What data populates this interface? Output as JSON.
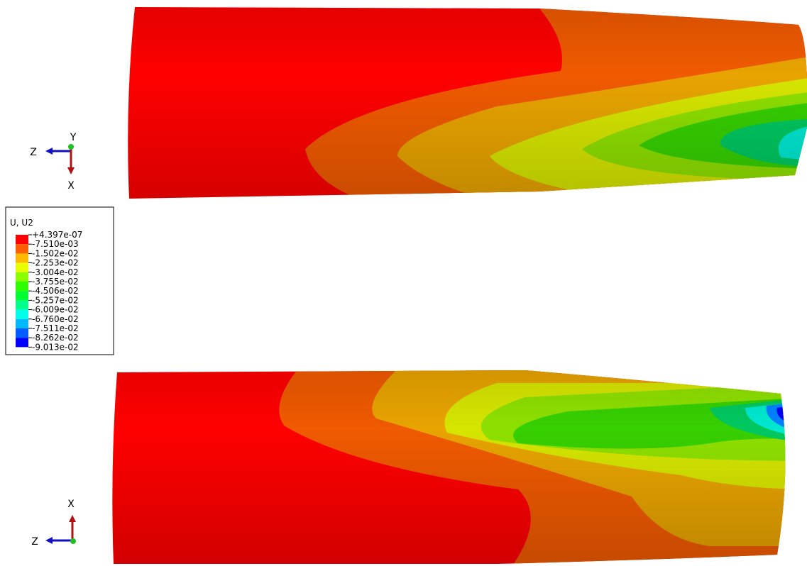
{
  "legend": {
    "title": "U, U2",
    "labels": [
      "+4.397e-07",
      "-7.510e-03",
      "-1.502e-02",
      "-2.253e-02",
      "-3.004e-02",
      "-3.755e-02",
      "-4.506e-02",
      "-5.257e-02",
      "-6.009e-02",
      "-6.760e-02",
      "-7.511e-02",
      "-8.262e-02",
      "-9.013e-02"
    ],
    "colors": [
      "#ff0000",
      "#ff5d00",
      "#ffb900",
      "#e8ff00",
      "#8bff00",
      "#2eff00",
      "#00ff2e",
      "#00ff8b",
      "#00ffe8",
      "#00b9ff",
      "#005dff",
      "#0000ff"
    ]
  },
  "triads": [
    {
      "horizontal": "Z",
      "top": "Y",
      "bottom": "X"
    },
    {
      "horizontal": "Z",
      "top": "X"
    }
  ]
}
